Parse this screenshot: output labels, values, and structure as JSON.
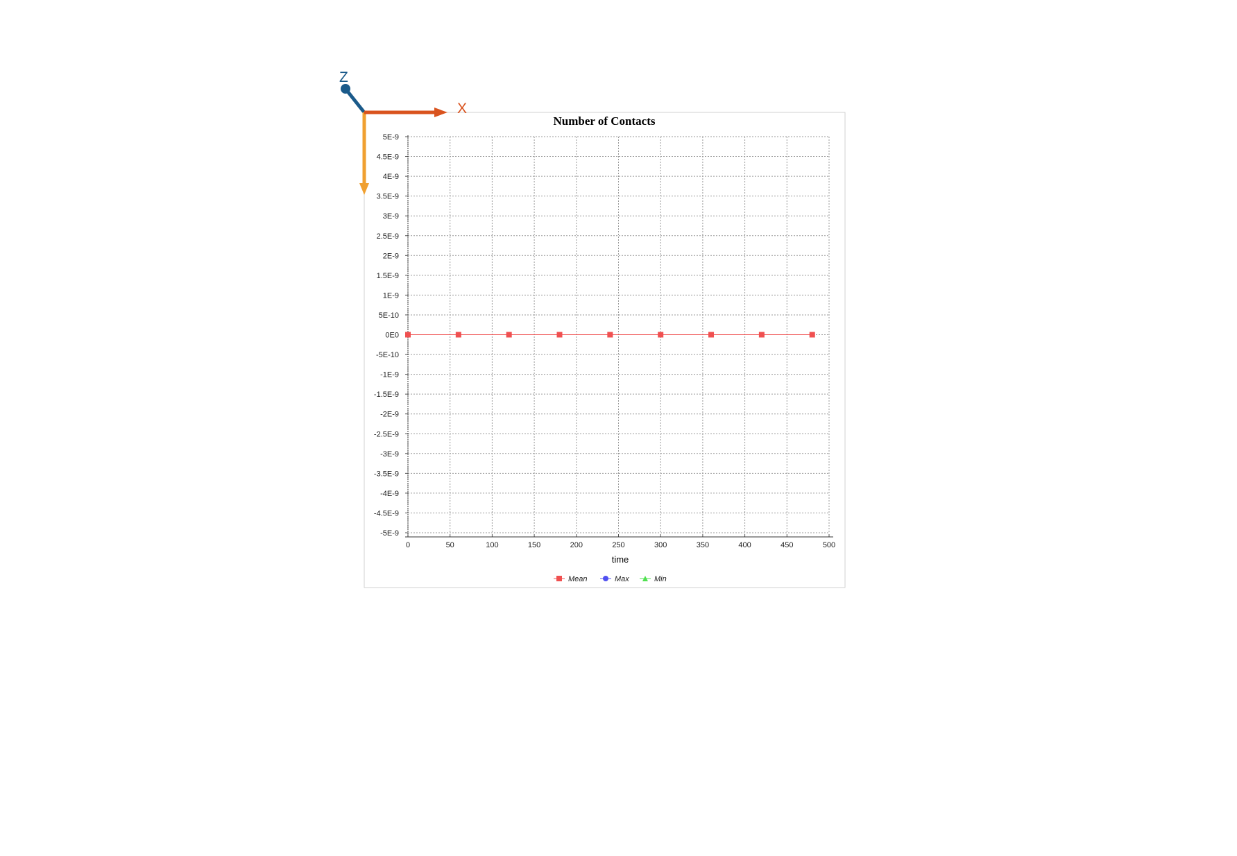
{
  "gizmo": {
    "x_label": "X",
    "z_label": "Z",
    "colors": {
      "x": "#d9531e",
      "y": "#f0a030",
      "z": "#1a5a8a"
    }
  },
  "chart_data": {
    "type": "line",
    "title": "Number of Contacts",
    "xlabel": "time",
    "ylabel": "",
    "xlim": [
      0,
      500
    ],
    "ylim": [
      -5e-09,
      5e-09
    ],
    "grid": true,
    "legend_position": "bottom",
    "x_ticks": [
      "0",
      "50",
      "100",
      "150",
      "200",
      "250",
      "300",
      "350",
      "400",
      "450",
      "500"
    ],
    "y_ticks": [
      "5E-9",
      "4.5E-9",
      "4E-9",
      "3.5E-9",
      "3E-9",
      "2.5E-9",
      "2E-9",
      "1.5E-9",
      "1E-9",
      "5E-10",
      "0E0",
      "-5E-10",
      "-1E-9",
      "-1.5E-9",
      "-2E-9",
      "-2.5E-9",
      "-3E-9",
      "-3.5E-9",
      "-4E-9",
      "-4.5E-9",
      "-5E-9"
    ],
    "x": [
      0,
      60,
      120,
      180,
      240,
      300,
      360,
      420,
      480
    ],
    "series": [
      {
        "name": "Mean",
        "color": "#f05050",
        "marker": "square",
        "values": [
          0,
          0,
          0,
          0,
          0,
          0,
          0,
          0,
          0
        ]
      },
      {
        "name": "Max",
        "color": "#5050f0",
        "marker": "circle",
        "values": [
          0,
          0,
          0,
          0,
          0,
          0,
          0,
          0,
          0
        ]
      },
      {
        "name": "Min",
        "color": "#50e050",
        "marker": "triangle",
        "values": [
          0,
          0,
          0,
          0,
          0,
          0,
          0,
          0,
          0
        ]
      }
    ]
  }
}
